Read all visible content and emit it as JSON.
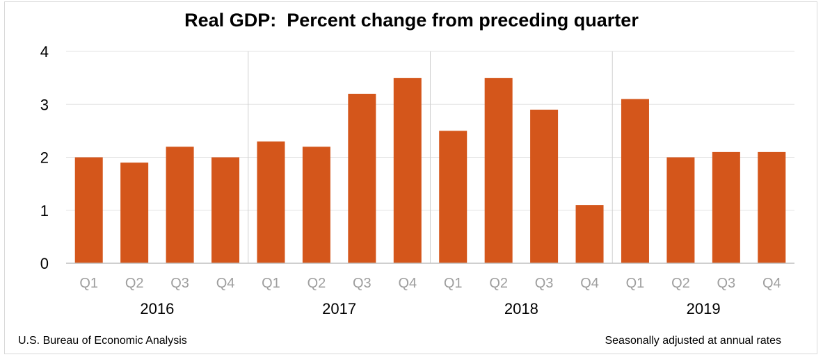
{
  "chart_data": {
    "type": "bar",
    "title": "Real GDP:  Percent change from preceding quarter",
    "categories": [
      "Q1",
      "Q2",
      "Q3",
      "Q4",
      "Q1",
      "Q2",
      "Q3",
      "Q4",
      "Q1",
      "Q2",
      "Q3",
      "Q4",
      "Q1",
      "Q2",
      "Q3",
      "Q4"
    ],
    "groups": [
      {
        "label": "2016",
        "count": 4
      },
      {
        "label": "2017",
        "count": 4
      },
      {
        "label": "2018",
        "count": 4
      },
      {
        "label": "2019",
        "count": 4
      }
    ],
    "values": [
      2.0,
      1.9,
      2.2,
      2.0,
      2.3,
      2.2,
      3.2,
      3.5,
      2.5,
      3.5,
      2.9,
      1.1,
      3.1,
      2.0,
      2.1,
      2.1
    ],
    "ylim": [
      0,
      4
    ],
    "yticks": [
      0,
      1,
      2,
      3,
      4
    ],
    "xlabel": "",
    "ylabel": "",
    "grid": true,
    "bar_color": "#d4561b",
    "grid_color": "#e3e3e3",
    "tick_label_color": "#9e9e9e"
  },
  "footer": {
    "source": "U.S. Bureau of Economic Analysis",
    "note": "Seasonally adjusted at annual rates"
  }
}
